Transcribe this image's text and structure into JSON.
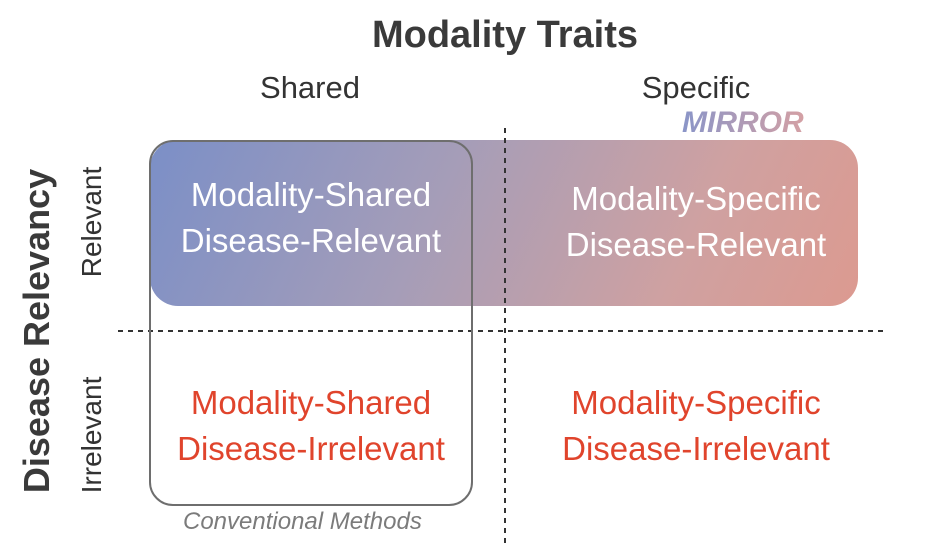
{
  "title": "Modality Traits",
  "columns": {
    "shared": "Shared",
    "specific": "Specific"
  },
  "rows": {
    "axis_title": "Disease Relevancy",
    "relevant": "Relevant",
    "irrelevant": "Irrelevant"
  },
  "cells": {
    "shared_relevant": {
      "line1": "Modality-Shared",
      "line2": "Disease-Relevant"
    },
    "specific_relevant": {
      "line1": "Modality-Specific",
      "line2": "Disease-Relevant"
    },
    "shared_irrelevant": {
      "line1": "Modality-Shared",
      "line2": "Disease-Irrelevant"
    },
    "specific_irrelevant": {
      "line1": "Modality-Specific",
      "line2": "Disease-Irrelevant"
    }
  },
  "regions": {
    "mirror": "MIRROR",
    "conventional": "Conventional Methods"
  },
  "colors": {
    "relevant_text": "#ffffff",
    "irrelevant_text": "#e0442c",
    "mirror_gradient_start": "#7b8fc7",
    "mirror_gradient_end": "#dc9a90",
    "conventional_box_border": "#6e6e6e"
  }
}
